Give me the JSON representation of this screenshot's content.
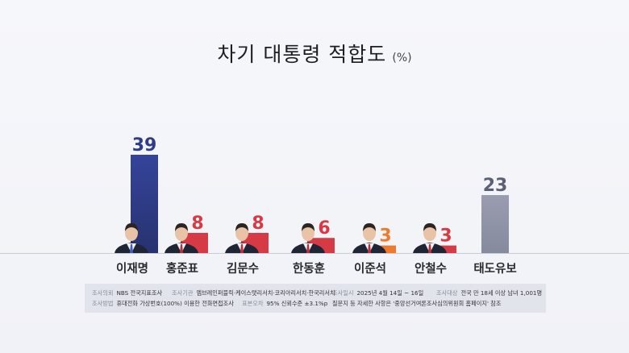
{
  "title": "차기 대통령 적합도",
  "unit": "(%)",
  "colors": {
    "leader": "#2f3c8a",
    "red": "#d63a44",
    "orange": "#ee7a2c",
    "undecided": "#8c90a2",
    "baseline": "#c9ccd6"
  },
  "chart_data": {
    "type": "bar",
    "title": "차기 대통령 적합도",
    "unit": "(%)",
    "categories": [
      "이재명",
      "홍준표",
      "김문수",
      "한동훈",
      "이준석",
      "안철수",
      "태도유보"
    ],
    "values": [
      39,
      8,
      8,
      6,
      3,
      3,
      23
    ],
    "bar_colors": [
      "#2f3c8a",
      "#d63a44",
      "#d63a44",
      "#d63a44",
      "#ee7a2c",
      "#d63a44",
      "#8c90a2"
    ],
    "label_colors": [
      "#2f3c8a",
      "#d63a44",
      "#d63a44",
      "#d63a44",
      "#ee7a2c",
      "#d63a44",
      "#5c6076"
    ],
    "has_photo": [
      true,
      true,
      true,
      true,
      true,
      true,
      false
    ],
    "ylim": [
      0,
      39
    ],
    "grid": false
  },
  "footer": {
    "row1": [
      {
        "label": "조사의뢰",
        "value": "NBS 전국지표조사"
      },
      {
        "label": "조사기관",
        "value": "엠브레인퍼블릭·케이스탯리서치·코리아리서치·한국리서치"
      },
      {
        "label": "조사일시",
        "value": "2025년 4월 14일 ~ 16일"
      },
      {
        "label": "조사대상",
        "value": "전국 만 18세 이상 남녀 1,001명"
      }
    ],
    "row2": [
      {
        "label": "조사방법",
        "value": "휴대전화 가상번호(100%) 이용한 전화면접조사"
      },
      {
        "label": "표본오차",
        "value": "95% 신뢰수준 ±3.1%p"
      },
      {
        "label": "",
        "value": "질문지 등 자세한 사항은 '중앙선거여론조사심의위원회 홈페이지' 참조"
      }
    ]
  }
}
